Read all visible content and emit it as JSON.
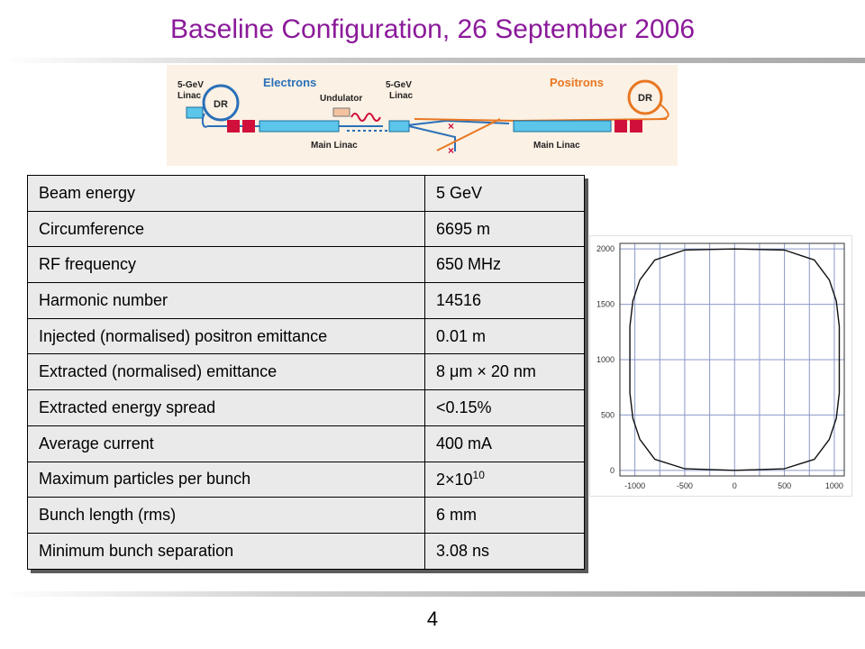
{
  "title": "Baseline Configuration, 26 September 2006",
  "page_number": "4",
  "schematic": {
    "labels": {
      "electrons": "Electrons",
      "positrons": "Positrons",
      "linac_left_energy": "5-GeV",
      "linac_left_name": "Linac",
      "dr_left": "DR",
      "undulator": "Undulator",
      "linac_mid_energy": "5-GeV",
      "linac_mid_name": "Linac",
      "dr_right": "DR",
      "main_linac_left": "Main Linac",
      "main_linac_right": "Main Linac"
    },
    "colors": {
      "electron": "#2a70b8",
      "positron": "#e87722",
      "magnet": "#d0103a",
      "linac": "#5bc5ea"
    }
  },
  "table": {
    "rows": [
      {
        "parameter": "Beam energy",
        "value": "5 GeV"
      },
      {
        "parameter": "Circumference",
        "value": "6695 m"
      },
      {
        "parameter": "RF frequency",
        "value": "650 MHz"
      },
      {
        "parameter": "Harmonic number",
        "value": "14516"
      },
      {
        "parameter": "Injected (normalised) positron emittance",
        "value": "0.01 m"
      },
      {
        "parameter": "Extracted (normalised) emittance",
        "value": "8 μm × 20 nm"
      },
      {
        "parameter": "Extracted energy spread",
        "value": "<0.15%"
      },
      {
        "parameter": "Average current",
        "value": "400 mA"
      },
      {
        "parameter": "Maximum particles per bunch",
        "value": "2×10",
        "value_sup": "10"
      },
      {
        "parameter": "Bunch length (rms)",
        "value": "6 mm"
      },
      {
        "parameter": "Minimum bunch separation",
        "value": "3.08 ns"
      }
    ]
  },
  "chart_data": {
    "type": "line",
    "title": "",
    "xlabel": "",
    "ylabel": "",
    "xlim": [
      -1150,
      1100
    ],
    "ylim": [
      -50,
      2050
    ],
    "xticks": [
      -1000,
      -500,
      0,
      500,
      1000
    ],
    "xtick_labels": [
      "-1000",
      "-500",
      "0",
      "500",
      "1000"
    ],
    "yticks": [
      0,
      500,
      1000,
      1500,
      2000
    ],
    "ytick_labels": [
      "0",
      "500",
      "1000",
      "1500",
      "2000"
    ],
    "grid": true,
    "series": [
      {
        "x": [
          0,
          500,
          800,
          950,
          1020,
          1050,
          1050,
          1020,
          950,
          800,
          500,
          0,
          -500,
          -800,
          -950,
          -1020,
          -1050,
          -1050,
          -1020,
          -950,
          -800,
          -500,
          0
        ],
        "y": [
          2000,
          1990,
          1900,
          1720,
          1530,
          1300,
          700,
          470,
          280,
          100,
          15,
          0,
          15,
          100,
          280,
          470,
          700,
          1300,
          1530,
          1720,
          1900,
          1990,
          2000
        ]
      }
    ]
  }
}
